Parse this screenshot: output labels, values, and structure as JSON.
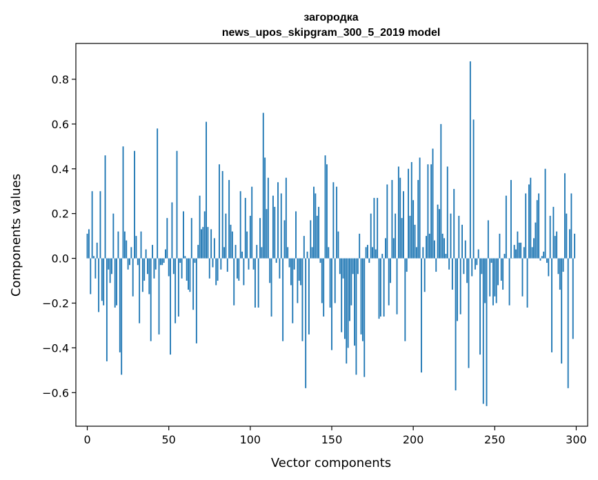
{
  "chart_data": {
    "type": "bar",
    "title": "загородка",
    "subtitle": "news_upos_skipgram_300_5_2019 model",
    "xlabel": "Vector components",
    "ylabel": "Components values",
    "xlim": [
      -7,
      307
    ],
    "ylim": [
      -0.75,
      0.96
    ],
    "xticks": [
      0,
      50,
      100,
      150,
      200,
      250,
      300
    ],
    "yticks": [
      -0.6,
      -0.4,
      -0.2,
      0.0,
      0.2,
      0.4,
      0.6,
      0.8
    ],
    "xtick_labels": [
      "0",
      "50",
      "100",
      "150",
      "200",
      "250",
      "300"
    ],
    "ytick_labels": [
      "−0.6",
      "−0.4",
      "−0.2",
      "0.0",
      "0.2",
      "0.4",
      "0.6",
      "0.8"
    ],
    "bar_color": "#1f77b4",
    "grid": false,
    "x": [
      0,
      1,
      2,
      3,
      4,
      5,
      6,
      7,
      8,
      9,
      10,
      11,
      12,
      13,
      14,
      15,
      16,
      17,
      18,
      19,
      20,
      21,
      22,
      23,
      24,
      25,
      26,
      27,
      28,
      29,
      30,
      31,
      32,
      33,
      34,
      35,
      36,
      37,
      38,
      39,
      40,
      41,
      42,
      43,
      44,
      45,
      46,
      47,
      48,
      49,
      50,
      51,
      52,
      53,
      54,
      55,
      56,
      57,
      58,
      59,
      60,
      61,
      62,
      63,
      64,
      65,
      66,
      67,
      68,
      69,
      70,
      71,
      72,
      73,
      74,
      75,
      76,
      77,
      78,
      79,
      80,
      81,
      82,
      83,
      84,
      85,
      86,
      87,
      88,
      89,
      90,
      91,
      92,
      93,
      94,
      95,
      96,
      97,
      98,
      99,
      100,
      101,
      102,
      103,
      104,
      105,
      106,
      107,
      108,
      109,
      110,
      111,
      112,
      113,
      114,
      115,
      116,
      117,
      118,
      119,
      120,
      121,
      122,
      123,
      124,
      125,
      126,
      127,
      128,
      129,
      130,
      131,
      132,
      133,
      134,
      135,
      136,
      137,
      138,
      139,
      140,
      141,
      142,
      143,
      144,
      145,
      146,
      147,
      148,
      149,
      150,
      151,
      152,
      153,
      154,
      155,
      156,
      157,
      158,
      159,
      160,
      161,
      162,
      163,
      164,
      165,
      166,
      167,
      168,
      169,
      170,
      171,
      172,
      173,
      174,
      175,
      176,
      177,
      178,
      179,
      180,
      181,
      182,
      183,
      184,
      185,
      186,
      187,
      188,
      189,
      190,
      191,
      192,
      193,
      194,
      195,
      196,
      197,
      198,
      199,
      200,
      201,
      202,
      203,
      204,
      205,
      206,
      207,
      208,
      209,
      210,
      211,
      212,
      213,
      214,
      215,
      216,
      217,
      218,
      219,
      220,
      221,
      222,
      223,
      224,
      225,
      226,
      227,
      228,
      229,
      230,
      231,
      232,
      233,
      234,
      235,
      236,
      237,
      238,
      239,
      240,
      241,
      242,
      243,
      244,
      245,
      246,
      247,
      248,
      249,
      250,
      251,
      252,
      253,
      254,
      255,
      256,
      257,
      258,
      259,
      260,
      261,
      262,
      263,
      264,
      265,
      266,
      267,
      268,
      269,
      270,
      271,
      272,
      273,
      274,
      275,
      276,
      277,
      278,
      279,
      280,
      281,
      282,
      283,
      284,
      285,
      286,
      287,
      288,
      289,
      290,
      291,
      292,
      293,
      294,
      295,
      296,
      297,
      298,
      299
    ],
    "values": [
      0.11,
      0.13,
      -0.16,
      0.3,
      0.01,
      -0.09,
      0.07,
      -0.24,
      0.3,
      -0.19,
      -0.21,
      0.46,
      -0.46,
      -0.05,
      -0.11,
      -0.07,
      0.2,
      -0.22,
      -0.21,
      0.12,
      -0.42,
      -0.52,
      0.5,
      0.12,
      0.08,
      -0.05,
      -0.03,
      0.05,
      -0.17,
      0.48,
      0.1,
      -0.03,
      -0.29,
      0.12,
      -0.15,
      -0.1,
      0.04,
      -0.07,
      -0.16,
      -0.37,
      0.06,
      -0.09,
      -0.05,
      0.58,
      -0.34,
      -0.03,
      -0.03,
      -0.02,
      0.04,
      0.18,
      -0.08,
      -0.43,
      0.25,
      -0.07,
      -0.29,
      0.48,
      -0.26,
      -0.02,
      -0.09,
      0.21,
      0.01,
      -0.1,
      -0.14,
      -0.15,
      0.18,
      -0.23,
      -0.02,
      -0.38,
      0.06,
      0.28,
      0.13,
      0.14,
      0.21,
      0.61,
      0.14,
      -0.09,
      0.13,
      -0.04,
      0.09,
      -0.12,
      -0.1,
      0.42,
      -0.05,
      0.39,
      0.05,
      0.2,
      -0.06,
      0.35,
      0.15,
      0.12,
      -0.21,
      0.06,
      -0.09,
      -0.1,
      0.3,
      0.03,
      -0.12,
      0.27,
      0.12,
      -0.05,
      0.19,
      0.32,
      -0.05,
      -0.22,
      0.06,
      -0.22,
      0.18,
      0.05,
      0.65,
      0.45,
      0.22,
      0.36,
      -0.11,
      -0.26,
      0.28,
      0.23,
      -0.02,
      0.34,
      -0.09,
      0.29,
      -0.37,
      0.17,
      0.36,
      0.05,
      -0.04,
      -0.12,
      -0.29,
      -0.05,
      0.21,
      -0.2,
      -0.1,
      -0.12,
      -0.37,
      0.1,
      -0.58,
      0.03,
      -0.34,
      0.17,
      0.05,
      0.32,
      0.29,
      0.19,
      0.23,
      -0.02,
      -0.2,
      -0.26,
      0.46,
      0.42,
      0.05,
      -0.22,
      -0.41,
      0.34,
      -0.2,
      0.32,
      0.12,
      -0.07,
      -0.33,
      -0.09,
      -0.36,
      -0.47,
      -0.4,
      -0.28,
      -0.21,
      -0.07,
      -0.39,
      -0.52,
      -0.07,
      0.11,
      -0.34,
      -0.37,
      -0.53,
      0.05,
      0.06,
      -0.02,
      0.2,
      0.05,
      0.27,
      0.04,
      0.27,
      -0.27,
      -0.26,
      0.02,
      -0.26,
      0.09,
      0.33,
      -0.21,
      -0.11,
      0.35,
      0.09,
      0.2,
      -0.25,
      0.41,
      0.36,
      0.18,
      0.3,
      -0.37,
      -0.06,
      0.4,
      0.19,
      0.43,
      0.26,
      0.15,
      0.05,
      0.35,
      0.45,
      -0.51,
      0.05,
      -0.15,
      0.1,
      0.42,
      0.11,
      0.42,
      0.49,
      0.08,
      -0.06,
      0.24,
      0.22,
      0.6,
      0.11,
      0.09,
      0.02,
      0.41,
      -0.05,
      0.2,
      -0.14,
      0.31,
      -0.59,
      -0.28,
      0.19,
      -0.25,
      0.15,
      -0.07,
      0.08,
      -0.11,
      -0.49,
      0.88,
      -0.08,
      0.62,
      -0.05,
      -0.03,
      0.04,
      -0.43,
      -0.07,
      -0.65,
      -0.2,
      -0.66,
      0.17,
      -0.17,
      -0.02,
      -0.21,
      -0.17,
      -0.2,
      -0.12,
      0.11,
      -0.1,
      -0.14,
      0.02,
      0.28,
      0.0,
      -0.21,
      0.35,
      0.0,
      0.06,
      0.04,
      0.12,
      0.07,
      0.07,
      -0.17,
      0.05,
      0.29,
      -0.22,
      0.33,
      0.36,
      0.05,
      0.09,
      0.16,
      0.26,
      0.29,
      -0.01,
      0.01,
      0.03,
      0.4,
      -0.02,
      -0.08,
      0.19,
      -0.42,
      0.23,
      0.1,
      0.12,
      -0.07,
      -0.14,
      -0.47,
      -0.06,
      0.38,
      0.2,
      -0.58,
      0.13,
      0.29,
      -0.36,
      0.11
    ]
  }
}
